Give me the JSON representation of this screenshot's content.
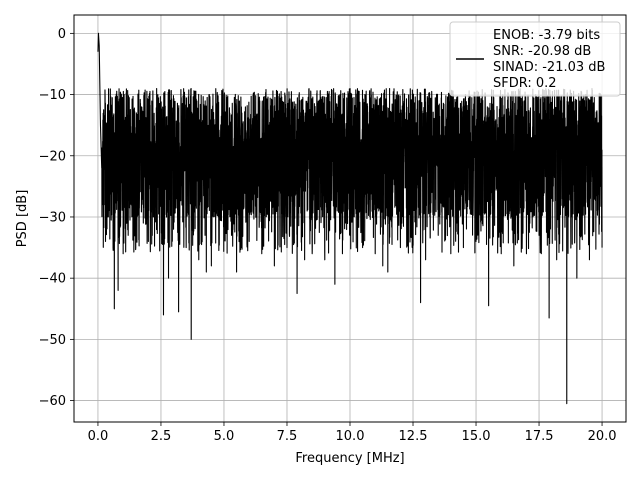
{
  "chart_data": {
    "type": "line",
    "title": "",
    "xlabel": "Frequency [MHz]",
    "ylabel": "PSD [dB]",
    "xlim": [
      -0.95,
      20.95
    ],
    "ylim": [
      -63.5,
      3
    ],
    "xticks": [
      0.0,
      2.5,
      5.0,
      7.5,
      10.0,
      12.5,
      15.0,
      17.5,
      20.0
    ],
    "xtick_labels": [
      "0.0",
      "2.5",
      "5.0",
      "7.5",
      "10.0",
      "12.5",
      "15.0",
      "17.5",
      "20.0"
    ],
    "yticks": [
      0,
      -10,
      -20,
      -30,
      -40,
      -50,
      -60
    ],
    "ytick_labels": [
      "0",
      "−10",
      "−20",
      "−30",
      "−40",
      "−50",
      "−60"
    ],
    "grid": true,
    "legend": {
      "location": "upper right",
      "lines": [
        "ENOB: -3.79 bits",
        "SNR: -20.98 dB",
        "SINAD: -21.03 dB",
        "SFDR: 0.2"
      ]
    },
    "series": [
      {
        "color": "#000000",
        "description": "dense noise-like power spectral density, roughly uniform between -10 and -35 dB across 0-20 MHz",
        "x": [
          0.0,
          0.02,
          0.05,
          0.1,
          0.15,
          0.2,
          0.3,
          0.4,
          0.5,
          0.6,
          0.65,
          0.8,
          1.0,
          1.2,
          1.5,
          1.8,
          2.0,
          2.2,
          2.5,
          2.6,
          2.8,
          3.0,
          3.2,
          3.5,
          3.7,
          4.0,
          4.3,
          4.5,
          5.0,
          5.3,
          5.5,
          5.7,
          6.0,
          6.5,
          7.0,
          7.5,
          7.9,
          8.2,
          8.5,
          9.0,
          9.4,
          9.7,
          10.0,
          10.5,
          11.0,
          11.3,
          11.5,
          12.0,
          12.5,
          12.8,
          13.0,
          13.5,
          14.0,
          14.5,
          15.0,
          15.5,
          16.0,
          16.5,
          17.0,
          17.5,
          17.9,
          18.2,
          18.6,
          19.0,
          19.5,
          20.0
        ],
        "y": [
          -3,
          0,
          -2,
          -15,
          -22,
          -28,
          -34,
          -30,
          -25,
          -35,
          -45,
          -42,
          -36,
          -33,
          -35,
          -31,
          -34,
          -30,
          -26,
          -46,
          -40,
          -32,
          -45.5,
          -35,
          -50,
          -37,
          -39,
          -38,
          -34,
          -33,
          -39,
          -35,
          -34,
          -36,
          -38,
          -35,
          -42.5,
          -37,
          -36,
          -37,
          -41,
          -36,
          -33,
          -35,
          -36,
          -38,
          -39,
          -35,
          -34,
          -44,
          -37,
          -33,
          -36,
          -35,
          -34,
          -44.5,
          -36,
          -38,
          -36,
          -33,
          -46.5,
          -37,
          -60.5,
          -40,
          -37,
          -35
        ]
      }
    ]
  }
}
